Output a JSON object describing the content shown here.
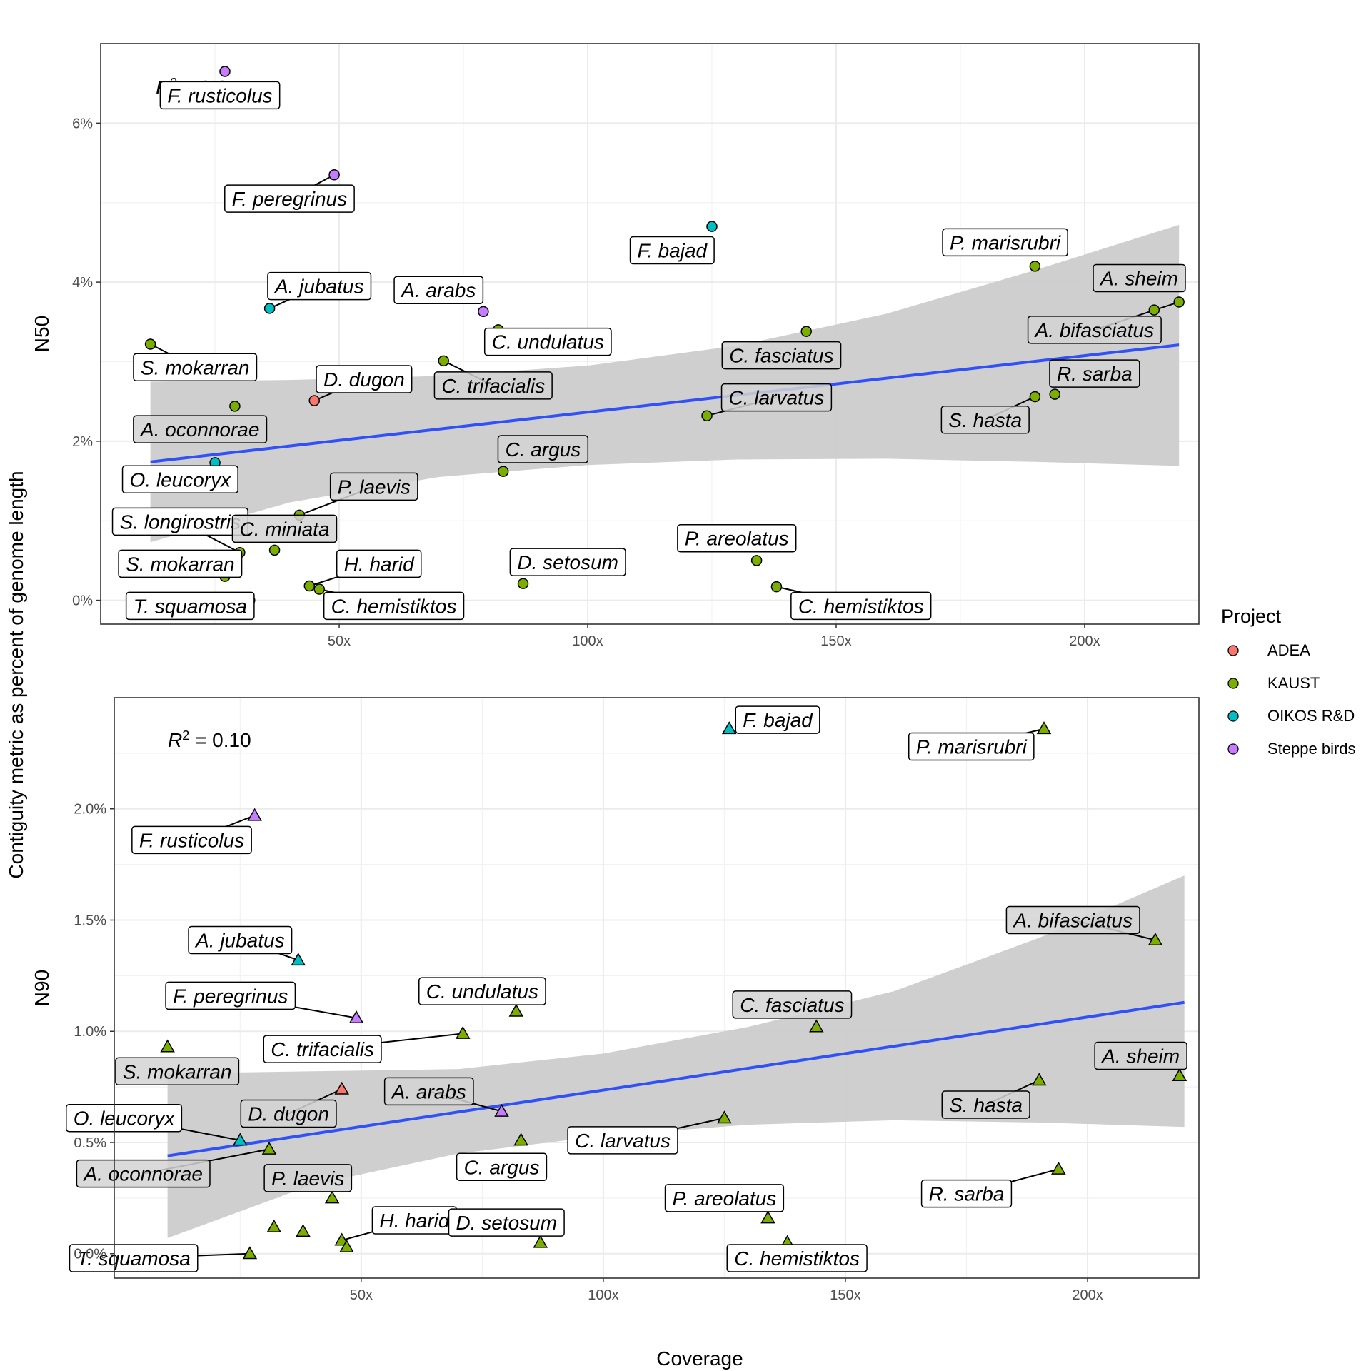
{
  "chart_data": {
    "type": "scatter",
    "shared_ylabel": "Contiguity metric as percent of genome length",
    "xlabel": "Coverage",
    "legend": {
      "title": "Project",
      "placement": "right",
      "entries": [
        {
          "name": "ADEA",
          "color": "#F8766D"
        },
        {
          "name": "KAUST",
          "color": "#7CAE00"
        },
        {
          "name": "OIKOS R&D",
          "color": "#00BFC4"
        },
        {
          "name": "Steppe birds",
          "color": "#C77CFF"
        }
      ]
    },
    "fit_color": "#3050F8",
    "ribbon_color": "#CCCCCC",
    "panels": [
      {
        "ylabel": "N50",
        "marker": "circle",
        "r2_label": "= 0.07",
        "xlim": [
          2,
          223
        ],
        "ylim": [
          -0.3,
          7.0
        ],
        "x_ticks": [
          50,
          100,
          150,
          200
        ],
        "x_tick_labels": [
          "50x",
          "100x",
          "150x",
          "200x"
        ],
        "y_ticks": [
          0,
          2,
          4,
          6
        ],
        "y_tick_labels": [
          "0%",
          "2%",
          "4%",
          "6%"
        ],
        "fit": {
          "x0": 12,
          "y0": 1.74,
          "x1": 219,
          "y1": 3.21
        },
        "ribbon_upper": [
          [
            12,
            2.75
          ],
          [
            40,
            2.77
          ],
          [
            70,
            2.82
          ],
          [
            100,
            2.95
          ],
          [
            130,
            3.2
          ],
          [
            160,
            3.6
          ],
          [
            190,
            4.15
          ],
          [
            219,
            4.72
          ]
        ],
        "ribbon_lower": [
          [
            12,
            0.73
          ],
          [
            40,
            1.23
          ],
          [
            70,
            1.55
          ],
          [
            100,
            1.7
          ],
          [
            130,
            1.77
          ],
          [
            160,
            1.78
          ],
          [
            190,
            1.74
          ],
          [
            219,
            1.69
          ]
        ],
        "points": [
          {
            "x": 27,
            "y": 6.65,
            "project": "Steppe birds",
            "label": "F. rusticolus",
            "lx": 26,
            "ly": 6.35,
            "fill": "#ffffff"
          },
          {
            "x": 49,
            "y": 5.35,
            "project": "Steppe birds",
            "label": "F. peregrinus",
            "lx": 40,
            "ly": 5.05,
            "fill": "#ffffff"
          },
          {
            "x": 125,
            "y": 4.7,
            "project": "OIKOS R&D",
            "label": "F. bajad",
            "lx": 117,
            "ly": 4.4,
            "fill": "#ffffff"
          },
          {
            "x": 190,
            "y": 4.2,
            "project": "KAUST",
            "label": "P. marisrubri",
            "lx": 184,
            "ly": 4.5,
            "fill": "#ffffff"
          },
          {
            "x": 214,
            "y": 3.65,
            "project": "KAUST",
            "label": "A. sheim",
            "lx": 211,
            "ly": 4.05,
            "fill": "#d3d3d3"
          },
          {
            "x": 219,
            "y": 3.75,
            "project": "KAUST",
            "label": "A. bifasciatus",
            "lx": 202,
            "ly": 3.4,
            "fill": "#d3d3d3"
          },
          {
            "x": 36,
            "y": 3.67,
            "project": "OIKOS R&D",
            "label": "A. jubatus",
            "lx": 46,
            "ly": 3.95,
            "fill": "#ffffff"
          },
          {
            "x": 79,
            "y": 3.63,
            "project": "Steppe birds",
            "label": "A. arabs",
            "lx": 70,
            "ly": 3.9,
            "fill": "#ffffff"
          },
          {
            "x": 82,
            "y": 3.4,
            "project": "KAUST",
            "label": "C. undulatus",
            "lx": 92,
            "ly": 3.25,
            "fill": "#ffffff"
          },
          {
            "x": 12,
            "y": 3.22,
            "project": "KAUST",
            "label": "S. mokarran",
            "lx": 21,
            "ly": 2.93,
            "fill": "#ffffff"
          },
          {
            "x": 144,
            "y": 3.38,
            "project": "KAUST",
            "label": "C. fasciatus",
            "lx": 139,
            "ly": 3.08,
            "fill": "#d3d3d3"
          },
          {
            "x": 71,
            "y": 3.01,
            "project": "KAUST",
            "label": "C. trifacialis",
            "lx": 81,
            "ly": 2.7,
            "fill": "#d3d3d3"
          },
          {
            "x": 45,
            "y": 2.51,
            "project": "ADEA",
            "label": "D. dugon",
            "lx": 55,
            "ly": 2.78,
            "fill": "#ffffff"
          },
          {
            "x": 29,
            "y": 2.44,
            "project": "KAUST",
            "label": "A. oconnorae",
            "lx": 22,
            "ly": 2.15,
            "fill": "#d3d3d3"
          },
          {
            "x": 194,
            "y": 2.59,
            "project": "KAUST",
            "label": "R. sarba",
            "lx": 202,
            "ly": 2.85,
            "fill": "#d3d3d3"
          },
          {
            "x": 190,
            "y": 2.56,
            "project": "KAUST",
            "label": "S. hasta",
            "lx": 180,
            "ly": 2.27,
            "fill": "#d3d3d3"
          },
          {
            "x": 124,
            "y": 2.32,
            "project": "KAUST",
            "label": "C. larvatus",
            "lx": 138,
            "ly": 2.55,
            "fill": "#d3d3d3"
          },
          {
            "x": 83,
            "y": 1.62,
            "project": "KAUST",
            "label": "C. argus",
            "lx": 91,
            "ly": 1.9,
            "fill": "#d3d3d3"
          },
          {
            "x": 25,
            "y": 1.73,
            "project": "OIKOS R&D",
            "label": "O. leucoryx",
            "lx": 18,
            "ly": 1.52,
            "fill": "#ffffff"
          },
          {
            "x": 42,
            "y": 1.07,
            "project": "KAUST",
            "label": "P. laevis",
            "lx": 57,
            "ly": 1.43,
            "fill": "#d3d3d3"
          },
          {
            "x": 30,
            "y": 0.6,
            "project": "KAUST",
            "label": "S. longirostris",
            "lx": 18,
            "ly": 0.99,
            "fill": "#ffffff"
          },
          {
            "x": 37,
            "y": 0.63,
            "project": "KAUST",
            "label": "C. miniata",
            "lx": 39,
            "ly": 0.9,
            "fill": "#d3d3d3"
          },
          {
            "x": 27,
            "y": 0.3,
            "project": "KAUST",
            "label": "S. mokarran",
            "lx": 18,
            "ly": 0.46,
            "fill": "#ffffff"
          },
          {
            "x": 44,
            "y": 0.18,
            "project": "KAUST",
            "label": "H. harid",
            "lx": 58,
            "ly": 0.46,
            "fill": "#ffffff"
          },
          {
            "x": 46,
            "y": 0.14,
            "project": "KAUST",
            "label": "C. hemistiktos",
            "lx": 61,
            "ly": -0.07,
            "fill": "#ffffff"
          },
          {
            "x": 87,
            "y": 0.21,
            "project": "KAUST",
            "label": "D. setosum",
            "lx": 96,
            "ly": 0.48,
            "fill": "#ffffff"
          },
          {
            "x": 134,
            "y": 0.5,
            "project": "KAUST",
            "label": "P. areolatus",
            "lx": 130,
            "ly": 0.78,
            "fill": "#ffffff"
          },
          {
            "x": 138,
            "y": 0.17,
            "project": "KAUST",
            "label": "C. hemistiktos",
            "lx": 155,
            "ly": -0.07,
            "fill": "#ffffff"
          },
          {
            "x": 32,
            "y": 0.0,
            "project": "KAUST",
            "label": "T. squamosa",
            "lx": 20,
            "ly": -0.07,
            "fill": "#ffffff"
          }
        ]
      },
      {
        "ylabel": "N90",
        "marker": "triangle",
        "r2_label": "= 0.10",
        "xlim": [
          -1,
          223
        ],
        "ylim": [
          -0.11,
          2.5
        ],
        "x_ticks": [
          50,
          100,
          150,
          200
        ],
        "x_tick_labels": [
          "50x",
          "100x",
          "150x",
          "200x"
        ],
        "y_ticks": [
          0,
          0.5,
          1.0,
          1.5,
          2.0
        ],
        "y_tick_labels": [
          "0.0%",
          "0.5%",
          "1.0%",
          "1.5%",
          "2.0%"
        ],
        "fit": {
          "x0": 10,
          "y0": 0.44,
          "x1": 220,
          "y1": 1.13
        },
        "ribbon_upper": [
          [
            10,
            0.81
          ],
          [
            40,
            0.82
          ],
          [
            70,
            0.83
          ],
          [
            100,
            0.9
          ],
          [
            130,
            1.02
          ],
          [
            160,
            1.18
          ],
          [
            190,
            1.42
          ],
          [
            220,
            1.7
          ]
        ],
        "ribbon_lower": [
          [
            10,
            0.07
          ],
          [
            40,
            0.31
          ],
          [
            70,
            0.45
          ],
          [
            100,
            0.53
          ],
          [
            130,
            0.58
          ],
          [
            160,
            0.6
          ],
          [
            190,
            0.59
          ],
          [
            220,
            0.57
          ]
        ],
        "points": [
          {
            "x": 126,
            "y": 2.36,
            "project": "OIKOS R&D",
            "label": "F. bajad",
            "lx": 136,
            "ly": 2.4,
            "fill": "#ffffff"
          },
          {
            "x": 191,
            "y": 2.36,
            "project": "KAUST",
            "label": "P. marisrubri",
            "lx": 176,
            "ly": 2.28,
            "fill": "#ffffff"
          },
          {
            "x": 28,
            "y": 1.97,
            "project": "Steppe birds",
            "label": "F. rusticolus",
            "lx": 15,
            "ly": 1.86,
            "fill": "#ffffff"
          },
          {
            "x": 37,
            "y": 1.32,
            "project": "OIKOS R&D",
            "label": "A. jubatus",
            "lx": 25,
            "ly": 1.41,
            "fill": "#ffffff"
          },
          {
            "x": 214,
            "y": 1.41,
            "project": "KAUST",
            "label": "A. bifasciatus",
            "lx": 197,
            "ly": 1.5,
            "fill": "#d3d3d3"
          },
          {
            "x": 49,
            "y": 1.06,
            "project": "Steppe birds",
            "label": "F. peregrinus",
            "lx": 23,
            "ly": 1.16,
            "fill": "#ffffff"
          },
          {
            "x": 82,
            "y": 1.09,
            "project": "KAUST",
            "label": "C. undulatus",
            "lx": 75,
            "ly": 1.18,
            "fill": "#ffffff"
          },
          {
            "x": 144,
            "y": 1.02,
            "project": "KAUST",
            "label": "C. fasciatus",
            "lx": 139,
            "ly": 1.12,
            "fill": "#d3d3d3"
          },
          {
            "x": 71,
            "y": 0.99,
            "project": "KAUST",
            "label": "C. trifacialis",
            "lx": 42,
            "ly": 0.92,
            "fill": "#ffffff"
          },
          {
            "x": 10,
            "y": 0.93,
            "project": "KAUST",
            "label": "S. mokarran",
            "lx": 12,
            "ly": 0.82,
            "fill": "#d3d3d3"
          },
          {
            "x": 219,
            "y": 0.8,
            "project": "KAUST",
            "label": "A. sheim",
            "lx": 211,
            "ly": 0.89,
            "fill": "#d3d3d3"
          },
          {
            "x": 190,
            "y": 0.78,
            "project": "KAUST",
            "label": "S. hasta",
            "lx": 179,
            "ly": 0.67,
            "fill": "#d3d3d3"
          },
          {
            "x": 46,
            "y": 0.74,
            "project": "ADEA",
            "label": "D. dugon",
            "lx": 35,
            "ly": 0.63,
            "fill": "#d3d3d3"
          },
          {
            "x": 79,
            "y": 0.64,
            "project": "Steppe birds",
            "label": "A. arabs",
            "lx": 64,
            "ly": 0.73,
            "fill": "#d3d3d3"
          },
          {
            "x": 25,
            "y": 0.51,
            "project": "OIKOS R&D",
            "label": "O. leucoryx",
            "lx": 1,
            "ly": 0.61,
            "fill": "#ffffff"
          },
          {
            "x": 31,
            "y": 0.47,
            "project": "KAUST",
            "label": "A. oconnorae",
            "lx": 5,
            "ly": 0.36,
            "fill": "#d3d3d3"
          },
          {
            "x": 125,
            "y": 0.61,
            "project": "KAUST",
            "label": "C. larvatus",
            "lx": 104,
            "ly": 0.51,
            "fill": "#ffffff"
          },
          {
            "x": 83,
            "y": 0.51,
            "project": "KAUST",
            "label": "C. argus",
            "lx": 79,
            "ly": 0.39,
            "fill": "#ffffff"
          },
          {
            "x": 44,
            "y": 0.25,
            "project": "KAUST",
            "label": "P. laevis",
            "lx": 39,
            "ly": 0.34,
            "fill": "#d3d3d3"
          },
          {
            "x": 194,
            "y": 0.38,
            "project": "KAUST",
            "label": "R. sarba",
            "lx": 175,
            "ly": 0.27,
            "fill": "#ffffff"
          },
          {
            "x": 134,
            "y": 0.16,
            "project": "KAUST",
            "label": "P. areolatus",
            "lx": 125,
            "ly": 0.25,
            "fill": "#ffffff"
          },
          {
            "x": 46,
            "y": 0.06,
            "project": "KAUST",
            "label": "H. harid",
            "lx": 61,
            "ly": 0.15,
            "fill": "#ffffff"
          },
          {
            "x": 87,
            "y": 0.05,
            "project": "KAUST",
            "label": "D. setosum",
            "lx": 80,
            "ly": 0.14,
            "fill": "#ffffff"
          },
          {
            "x": 138,
            "y": 0.05,
            "project": "KAUST",
            "label": "C. hemistiktos",
            "lx": 140,
            "ly": -0.02,
            "fill": "#ffffff"
          },
          {
            "x": 32,
            "y": 0.12,
            "project": "KAUST",
            "label": "S. longirostris",
            "lx": null,
            "ly": null,
            "fill": "#ffffff"
          },
          {
            "x": 38,
            "y": 0.1,
            "project": "KAUST",
            "label": "C. miniata",
            "lx": null,
            "ly": null,
            "fill": "#ffffff"
          },
          {
            "x": 47,
            "y": 0.03,
            "project": "KAUST",
            "label": "C. hemistiktos",
            "lx": null,
            "ly": null,
            "fill": "#ffffff"
          },
          {
            "x": 27,
            "y": 0.0,
            "project": "KAUST",
            "label": "T. squamosa",
            "lx": 3,
            "ly": -0.02,
            "fill": "#ffffff"
          }
        ]
      }
    ]
  }
}
